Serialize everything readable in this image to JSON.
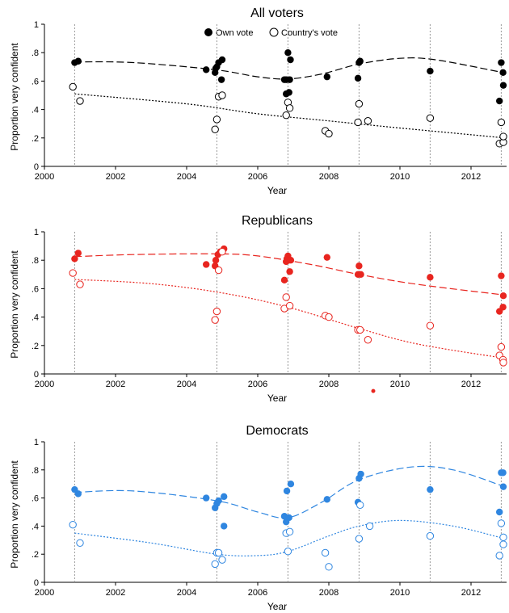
{
  "legend": {
    "own_label": "Own vote",
    "country_label": "Country's vote"
  },
  "colors": {
    "all": "#000000",
    "rep": "#e8251f",
    "dem": "#2f86e0"
  },
  "chart_data": [
    {
      "type": "scatter",
      "title": "All voters",
      "xlabel": "Year",
      "ylabel": "Proportion very confident",
      "xlim": [
        2000,
        2013
      ],
      "ylim": [
        0,
        1
      ],
      "xticks": [
        "2000",
        "2002",
        "2004",
        "2006",
        "2008",
        "2010",
        "2012"
      ],
      "yticks": [
        "0",
        ".2",
        ".4",
        ".6",
        ".8",
        "1"
      ],
      "election_lines": [
        2000.85,
        2004.85,
        2006.85,
        2008.85,
        2010.85,
        2012.85
      ],
      "legend": "top-center",
      "series": [
        {
          "name": "Own vote",
          "marker": "filled",
          "points": [
            [
              2000.85,
              0.73
            ],
            [
              2000.95,
              0.74
            ],
            [
              2004.55,
              0.68
            ],
            [
              2004.8,
              0.66
            ],
            [
              2004.82,
              0.69
            ],
            [
              2004.85,
              0.7
            ],
            [
              2004.9,
              0.73
            ],
            [
              2005.0,
              0.75
            ],
            [
              2004.98,
              0.61
            ],
            [
              2006.75,
              0.61
            ],
            [
              2006.8,
              0.61
            ],
            [
              2006.8,
              0.51
            ],
            [
              2006.85,
              0.8
            ],
            [
              2006.88,
              0.52
            ],
            [
              2006.9,
              0.61
            ],
            [
              2006.92,
              0.75
            ],
            [
              2007.95,
              0.63
            ],
            [
              2008.82,
              0.62
            ],
            [
              2008.85,
              0.73
            ],
            [
              2008.88,
              0.74
            ],
            [
              2010.85,
              0.67
            ],
            [
              2012.8,
              0.46
            ],
            [
              2012.85,
              0.73
            ],
            [
              2012.9,
              0.66
            ],
            [
              2012.95,
              0.57
            ]
          ],
          "trend": [
            [
              2000.85,
              0.735
            ],
            [
              2002.5,
              0.73
            ],
            [
              2004.8,
              0.68
            ],
            [
              2006,
              0.63
            ],
            [
              2006.85,
              0.615
            ],
            [
              2007.8,
              0.65
            ],
            [
              2008.85,
              0.72
            ],
            [
              2010,
              0.76
            ],
            [
              2011,
              0.75
            ],
            [
              2012.9,
              0.66
            ]
          ]
        },
        {
          "name": "Country's vote",
          "marker": "hollow",
          "points": [
            [
              2000.8,
              0.56
            ],
            [
              2001.0,
              0.46
            ],
            [
              2004.8,
              0.26
            ],
            [
              2004.85,
              0.33
            ],
            [
              2004.9,
              0.49
            ],
            [
              2005.0,
              0.5
            ],
            [
              2006.8,
              0.36
            ],
            [
              2006.85,
              0.45
            ],
            [
              2006.9,
              0.41
            ],
            [
              2007.9,
              0.25
            ],
            [
              2008.0,
              0.23
            ],
            [
              2008.85,
              0.44
            ],
            [
              2008.82,
              0.31
            ],
            [
              2009.1,
              0.32
            ],
            [
              2010.85,
              0.34
            ],
            [
              2012.85,
              0.31
            ],
            [
              2012.8,
              0.16
            ],
            [
              2012.92,
              0.17
            ],
            [
              2012.95,
              0.21
            ]
          ],
          "trend": [
            [
              2000.85,
              0.51
            ],
            [
              2004,
              0.44
            ],
            [
              2006,
              0.37
            ],
            [
              2008,
              0.32
            ],
            [
              2010,
              0.27
            ],
            [
              2012.95,
              0.2
            ]
          ]
        }
      ]
    },
    {
      "type": "scatter",
      "title": "Republicans",
      "xlabel": "Year",
      "ylabel": "Proportion very confident",
      "xlim": [
        2000,
        2013
      ],
      "ylim": [
        0,
        1
      ],
      "xticks": [
        "2000",
        "2002",
        "2004",
        "2006",
        "2008",
        "2010",
        "2012"
      ],
      "yticks": [
        "0",
        ".2",
        ".4",
        ".6",
        ".8",
        "1"
      ],
      "election_lines": [
        2000.85,
        2004.85,
        2006.85,
        2008.85,
        2010.85,
        2012.85
      ],
      "stray_point": [
        2009.25,
        -0.12
      ],
      "series": [
        {
          "name": "Own vote",
          "marker": "filled",
          "points": [
            [
              2000.85,
              0.81
            ],
            [
              2000.95,
              0.85
            ],
            [
              2004.55,
              0.77
            ],
            [
              2004.8,
              0.76
            ],
            [
              2004.82,
              0.8
            ],
            [
              2004.88,
              0.84
            ],
            [
              2004.95,
              0.86
            ],
            [
              2005.05,
              0.88
            ],
            [
              2006.75,
              0.66
            ],
            [
              2006.8,
              0.79
            ],
            [
              2006.82,
              0.81
            ],
            [
              2006.85,
              0.83
            ],
            [
              2006.88,
              0.8
            ],
            [
              2006.9,
              0.72
            ],
            [
              2006.93,
              0.8
            ],
            [
              2007.95,
              0.82
            ],
            [
              2008.82,
              0.7
            ],
            [
              2008.85,
              0.76
            ],
            [
              2008.9,
              0.7
            ],
            [
              2010.85,
              0.68
            ],
            [
              2012.8,
              0.44
            ],
            [
              2012.85,
              0.69
            ],
            [
              2012.9,
              0.47
            ],
            [
              2012.95,
              0.55
            ]
          ],
          "trend": [
            [
              2000.85,
              0.825
            ],
            [
              2002.5,
              0.84
            ],
            [
              2004.85,
              0.845
            ],
            [
              2006,
              0.83
            ],
            [
              2007.5,
              0.77
            ],
            [
              2008.85,
              0.7
            ],
            [
              2010.5,
              0.63
            ],
            [
              2012.95,
              0.555
            ]
          ]
        },
        {
          "name": "Country's vote",
          "marker": "hollow",
          "points": [
            [
              2000.8,
              0.71
            ],
            [
              2001.0,
              0.63
            ],
            [
              2004.8,
              0.38
            ],
            [
              2004.85,
              0.44
            ],
            [
              2004.9,
              0.73
            ],
            [
              2005.0,
              0.86
            ],
            [
              2006.75,
              0.46
            ],
            [
              2006.8,
              0.54
            ],
            [
              2006.9,
              0.48
            ],
            [
              2007.9,
              0.41
            ],
            [
              2008.0,
              0.4
            ],
            [
              2008.82,
              0.31
            ],
            [
              2008.88,
              0.31
            ],
            [
              2009.1,
              0.24
            ],
            [
              2010.85,
              0.34
            ],
            [
              2012.8,
              0.13
            ],
            [
              2012.85,
              0.19
            ],
            [
              2012.9,
              0.1
            ],
            [
              2012.95,
              0.08
            ]
          ],
          "trend": [
            [
              2000.85,
              0.665
            ],
            [
              2003,
              0.635
            ],
            [
              2005,
              0.57
            ],
            [
              2006.85,
              0.47
            ],
            [
              2008.85,
              0.32
            ],
            [
              2010.5,
              0.21
            ],
            [
              2012.95,
              0.11
            ]
          ]
        }
      ]
    },
    {
      "type": "scatter",
      "title": "Democrats",
      "xlabel": "Year",
      "ylabel": "Proportion very confident",
      "xlim": [
        2000,
        2013
      ],
      "ylim": [
        0,
        1
      ],
      "xticks": [
        "2000",
        "2002",
        "2004",
        "2006",
        "2008",
        "2010",
        "2012"
      ],
      "yticks": [
        "0",
        ".2",
        ".4",
        ".6",
        ".8",
        "1"
      ],
      "election_lines": [
        2000.85,
        2004.85,
        2006.85,
        2008.85,
        2010.85,
        2012.85
      ],
      "series": [
        {
          "name": "Own vote",
          "marker": "filled",
          "points": [
            [
              2000.85,
              0.66
            ],
            [
              2000.95,
              0.63
            ],
            [
              2004.55,
              0.6
            ],
            [
              2004.8,
              0.53
            ],
            [
              2004.85,
              0.56
            ],
            [
              2004.9,
              0.58
            ],
            [
              2005.05,
              0.61
            ],
            [
              2005.05,
              0.4
            ],
            [
              2006.75,
              0.47
            ],
            [
              2006.8,
              0.43
            ],
            [
              2006.82,
              0.65
            ],
            [
              2006.88,
              0.46
            ],
            [
              2006.93,
              0.7
            ],
            [
              2007.95,
              0.59
            ],
            [
              2008.82,
              0.57
            ],
            [
              2008.85,
              0.74
            ],
            [
              2008.9,
              0.77
            ],
            [
              2010.85,
              0.66
            ],
            [
              2012.8,
              0.5
            ],
            [
              2012.85,
              0.78
            ],
            [
              2012.9,
              0.78
            ],
            [
              2012.95,
              0.68
            ]
          ],
          "trend": [
            [
              2000.85,
              0.64
            ],
            [
              2002.5,
              0.65
            ],
            [
              2004.85,
              0.58
            ],
            [
              2006,
              0.5
            ],
            [
              2006.85,
              0.46
            ],
            [
              2007.8,
              0.57
            ],
            [
              2008.85,
              0.73
            ],
            [
              2010.3,
              0.82
            ],
            [
              2011.5,
              0.8
            ],
            [
              2012.95,
              0.68
            ]
          ]
        },
        {
          "name": "Country's vote",
          "marker": "hollow",
          "points": [
            [
              2000.8,
              0.41
            ],
            [
              2001.0,
              0.28
            ],
            [
              2004.8,
              0.13
            ],
            [
              2004.85,
              0.21
            ],
            [
              2004.9,
              0.21
            ],
            [
              2005.0,
              0.16
            ],
            [
              2006.8,
              0.35
            ],
            [
              2006.85,
              0.22
            ],
            [
              2006.9,
              0.36
            ],
            [
              2007.9,
              0.21
            ],
            [
              2008.0,
              0.11
            ],
            [
              2008.85,
              0.31
            ],
            [
              2008.88,
              0.55
            ],
            [
              2009.15,
              0.4
            ],
            [
              2010.85,
              0.33
            ],
            [
              2012.8,
              0.19
            ],
            [
              2012.85,
              0.42
            ],
            [
              2012.92,
              0.32
            ],
            [
              2012.95,
              0.27
            ]
          ],
          "trend": [
            [
              2000.85,
              0.35
            ],
            [
              2003,
              0.28
            ],
            [
              2004.85,
              0.2
            ],
            [
              2006,
              0.19
            ],
            [
              2006.85,
              0.22
            ],
            [
              2008,
              0.33
            ],
            [
              2008.85,
              0.4
            ],
            [
              2010,
              0.44
            ],
            [
              2011.5,
              0.4
            ],
            [
              2012.95,
              0.31
            ]
          ]
        }
      ]
    }
  ]
}
